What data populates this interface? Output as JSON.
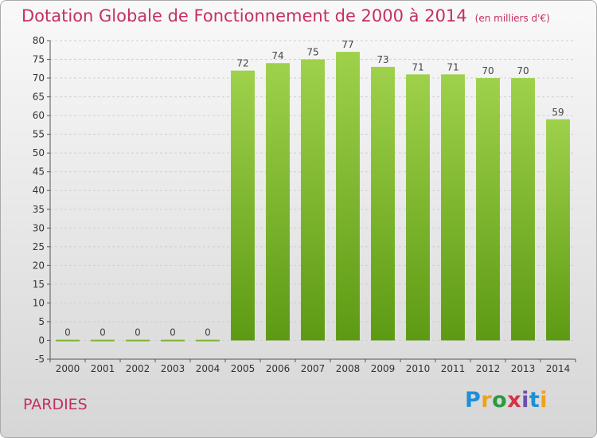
{
  "header": {
    "title": "Dotation Globale de Fonctionnement de 2000 à 2014",
    "unit": "(en milliers d'€)"
  },
  "footer": {
    "commune": "PARDIES",
    "brand_letters": [
      "P",
      "r",
      "o",
      "x",
      "i",
      "t",
      "i"
    ],
    "brand_colors": [
      "#1f8fd6",
      "#f0a11a",
      "#2c9a3f",
      "#d6334a",
      "#6a4fb0",
      "#1f8fd6",
      "#f0a11a"
    ]
  },
  "chart_data": {
    "type": "bar",
    "title": "Dotation Globale de Fonctionnement de 2000 à 2014",
    "subtitle": "(en milliers d'€)",
    "xlabel": "",
    "ylabel": "",
    "categories": [
      "2000",
      "2001",
      "2002",
      "2003",
      "2004",
      "2005",
      "2006",
      "2007",
      "2008",
      "2009",
      "2010",
      "2011",
      "2012",
      "2013",
      "2014"
    ],
    "values": [
      0,
      0,
      0,
      0,
      0,
      72,
      74,
      75,
      77,
      73,
      71,
      71,
      70,
      70,
      59
    ],
    "ylim": [
      -5,
      80
    ],
    "yticks": [
      -5,
      0,
      5,
      10,
      15,
      20,
      25,
      30,
      35,
      40,
      45,
      50,
      55,
      60,
      65,
      70,
      75,
      80
    ],
    "grid": true,
    "bar_color_top": "#9fd14b",
    "bar_color_bottom": "#5d9a13",
    "label_color": "#c5305f"
  }
}
